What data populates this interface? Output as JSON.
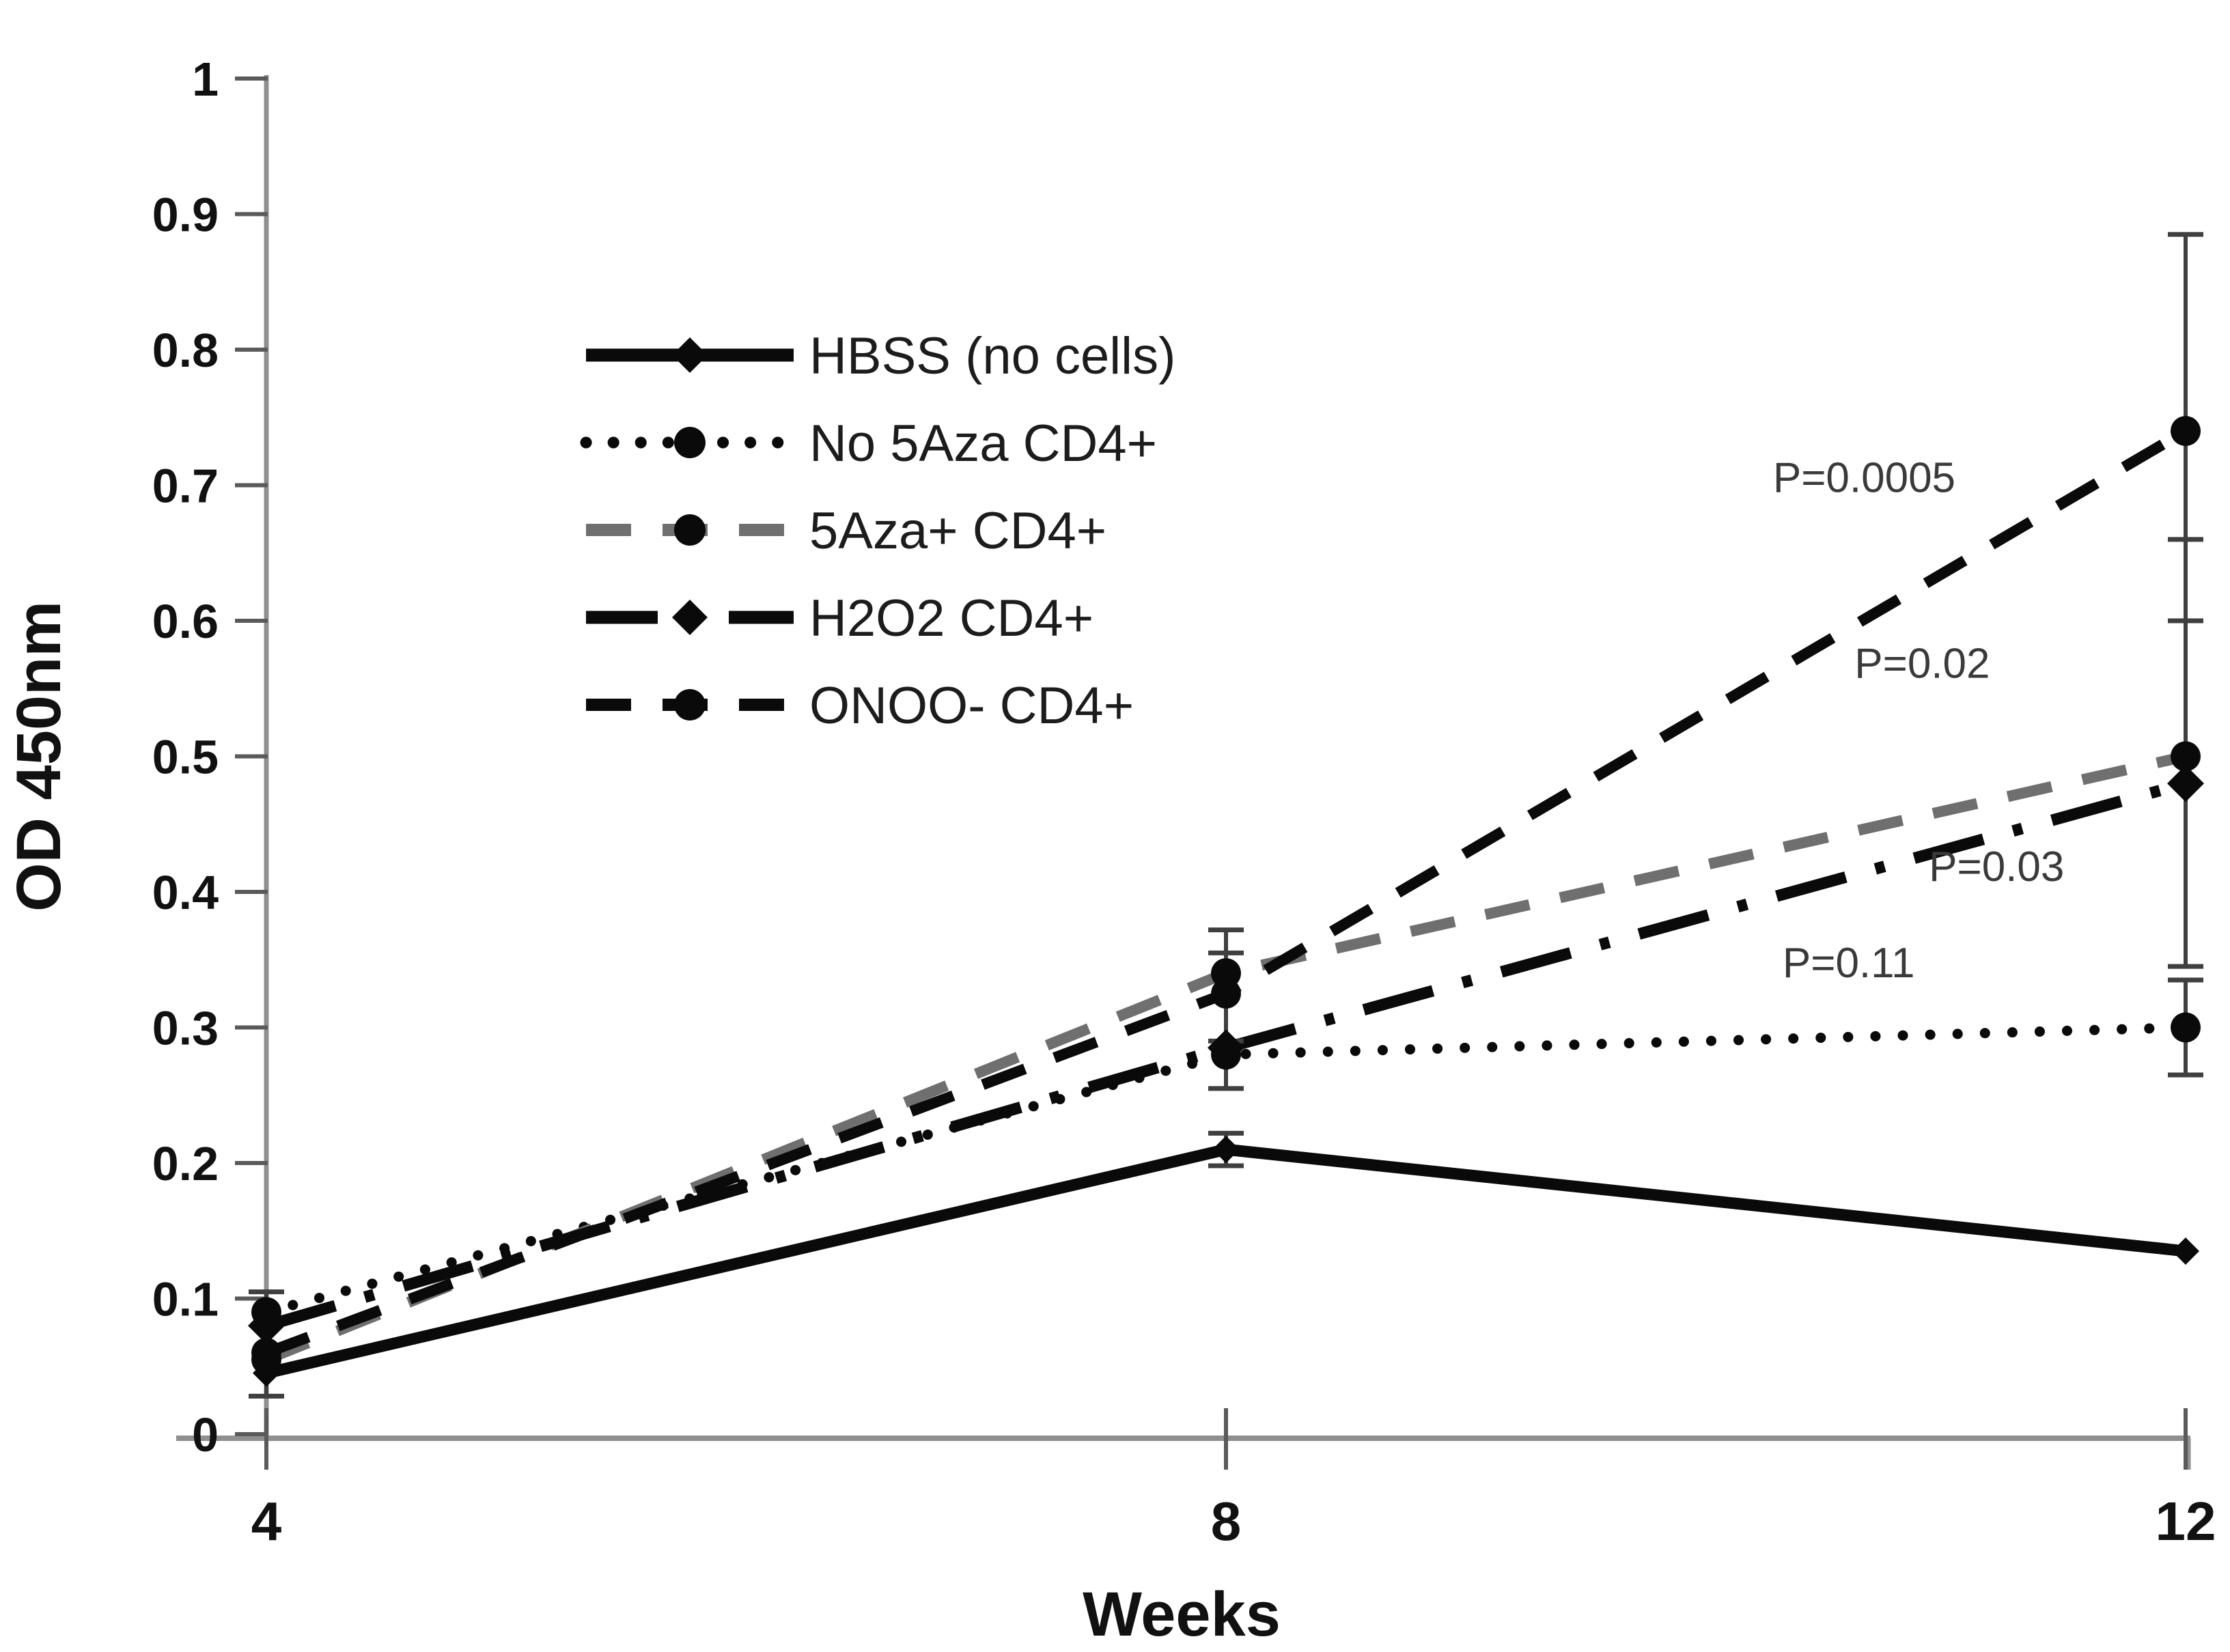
{
  "figure": {
    "colors": {
      "ink": "#0a0a0a",
      "gray_series": "#6f6f6f",
      "axis": "#8f8f8f",
      "tick": "#5a5a5a",
      "error_bar": "#3f3f3f",
      "background": "#ffffff"
    }
  },
  "chart_data": {
    "type": "line",
    "title": "",
    "xlabel": "Weeks",
    "ylabel": "OD 450nm",
    "x": [
      4,
      8,
      12
    ],
    "x_tick_labels": [
      "4",
      "8",
      "12"
    ],
    "y_ticks": [
      0,
      0.1,
      0.2,
      0.3,
      0.4,
      0.5,
      0.6,
      0.7,
      0.8,
      0.9,
      1
    ],
    "y_tick_labels": [
      "0",
      "0.1",
      "0.2",
      "0.3",
      "0.4",
      "0.5",
      "0.6",
      "0.7",
      "0.8",
      "0.9",
      "1"
    ],
    "ylim": [
      0,
      1
    ],
    "xlim_weeks": [
      4,
      12
    ],
    "grid": false,
    "legend_position": "upper-left-inside",
    "series": [
      {
        "name": "HBSS (no cells)",
        "style": "solid",
        "marker": "diamond",
        "color": "#0a0a0a",
        "values": [
          0.045,
          0.21,
          0.135
        ]
      },
      {
        "name": "No 5Aza CD4+",
        "style": "dotted",
        "marker": "circle",
        "color": "#0a0a0a",
        "values": [
          0.09,
          0.28,
          0.3
        ]
      },
      {
        "name": "5Aza+ CD4+",
        "style": "dashed",
        "marker": "circle",
        "color": "#6f6f6f",
        "values": [
          0.055,
          0.34,
          0.5
        ]
      },
      {
        "name": "H2O2 CD4+",
        "style": "dashdot",
        "marker": "diamond",
        "color": "#0a0a0a",
        "values": [
          0.08,
          0.285,
          0.48
        ]
      },
      {
        "name": "ONOO- CD4+",
        "style": "dashed",
        "marker": "circle",
        "color": "#0a0a0a",
        "values": [
          0.06,
          0.325,
          0.74
        ]
      }
    ],
    "error_bars": [
      {
        "x": 4,
        "low": 0.028,
        "high": 0.105
      },
      {
        "x": 8,
        "low": 0.255,
        "high": 0.372
      },
      {
        "x": 8,
        "low": 0.29,
        "high": 0.355
      },
      {
        "x": 8,
        "low": 0.198,
        "high": 0.222
      },
      {
        "x": 12,
        "low": 0.6,
        "high": 0.885
      },
      {
        "x": 12,
        "low": 0.345,
        "high": 0.66
      },
      {
        "x": 12,
        "low": 0.265,
        "high": 0.335
      }
    ],
    "annotations": [
      {
        "text": "P=0.0005",
        "x_weeks": 10.28,
        "y_od": 0.695
      },
      {
        "text": "P=0.02",
        "x_weeks": 10.62,
        "y_od": 0.558
      },
      {
        "text": "P=0.03",
        "x_weeks": 10.93,
        "y_od": 0.408
      },
      {
        "text": "P=0.11",
        "x_weeks": 10.32,
        "y_od": 0.337
      }
    ]
  }
}
